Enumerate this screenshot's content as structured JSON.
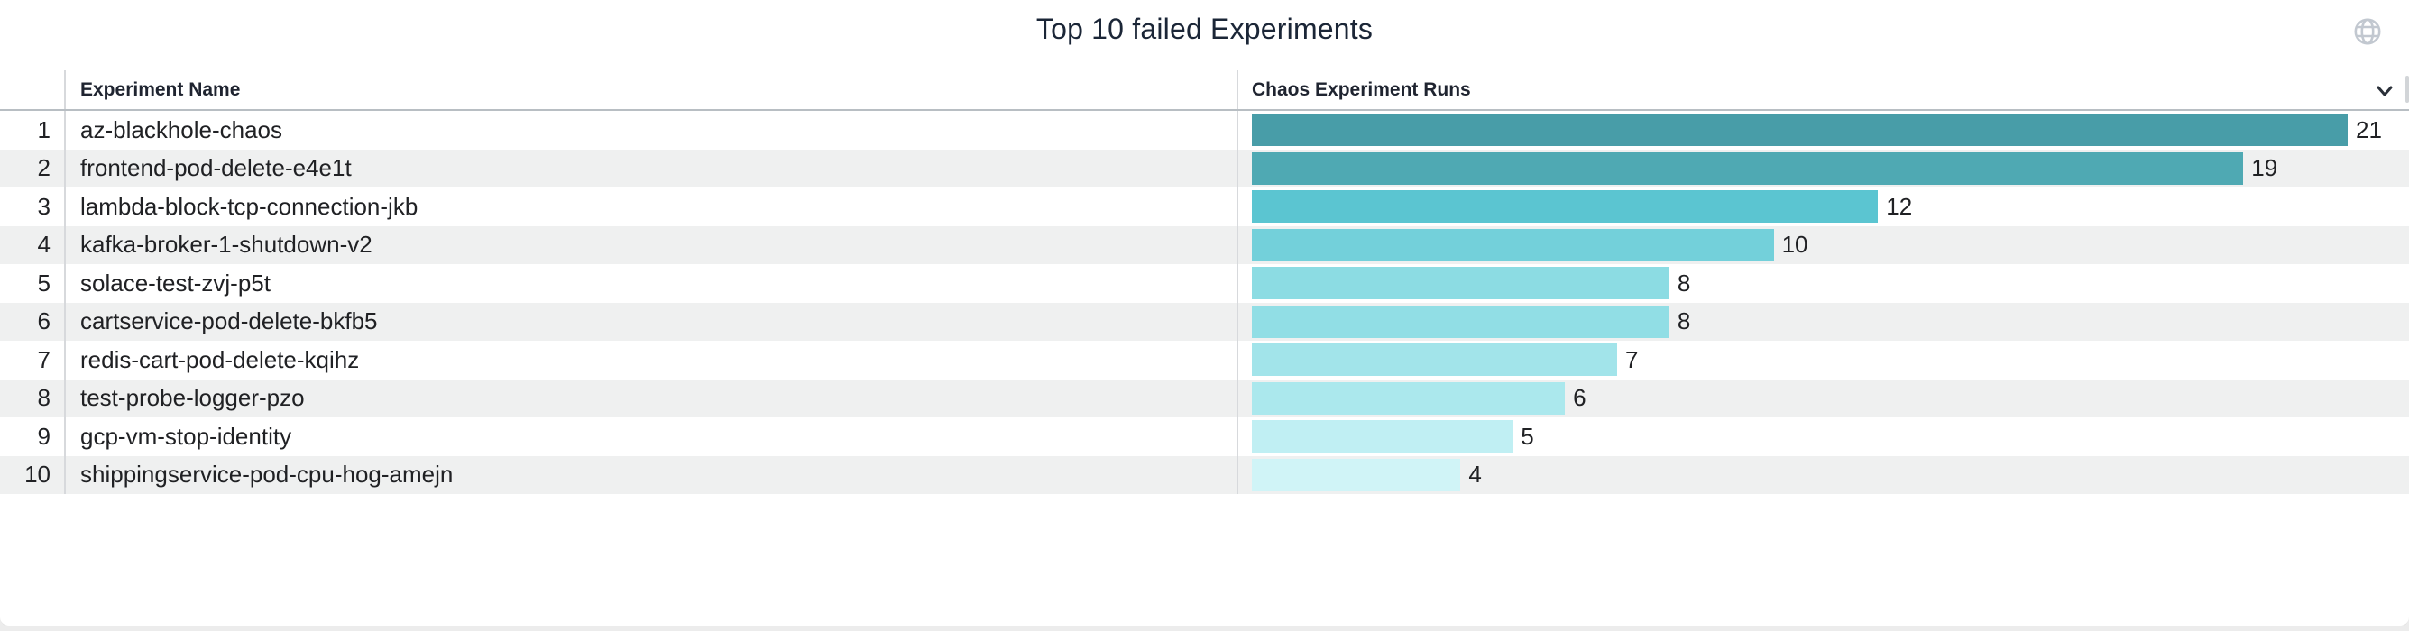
{
  "widget": {
    "title": "Top 10 failed Experiments"
  },
  "table": {
    "rank_header": "",
    "name_header": "Experiment Name",
    "runs_header": "Chaos Experiment Runs",
    "rows": [
      {
        "rank": "1",
        "name": "az-blackhole-chaos",
        "runs": 21,
        "bar_color": "#489DA8"
      },
      {
        "rank": "2",
        "name": "frontend-pod-delete-e4e1t",
        "runs": 19,
        "bar_color": "#4FA9B3"
      },
      {
        "rank": "3",
        "name": "lambda-block-tcp-connection-jkb",
        "runs": 12,
        "bar_color": "#5BC5D1"
      },
      {
        "rank": "4",
        "name": "kafka-broker-1-shutdown-v2",
        "runs": 10,
        "bar_color": "#73D0DA"
      },
      {
        "rank": "5",
        "name": "solace-test-zvj-p5t",
        "runs": 8,
        "bar_color": "#8CDCE3"
      },
      {
        "rank": "6",
        "name": "cartservice-pod-delete-bkfb5",
        "runs": 8,
        "bar_color": "#91DEE5"
      },
      {
        "rank": "7",
        "name": "redis-cart-pod-delete-kqihz",
        "runs": 7,
        "bar_color": "#A2E4EA"
      },
      {
        "rank": "8",
        "name": "test-probe-logger-pzo",
        "runs": 6,
        "bar_color": "#ABE8ED"
      },
      {
        "rank": "9",
        "name": "gcp-vm-stop-identity",
        "runs": 5,
        "bar_color": "#C0EFF3"
      },
      {
        "rank": "10",
        "name": "shippingservice-pod-cpu-hog-amejn",
        "runs": 4,
        "bar_color": "#D0F4F7"
      }
    ]
  },
  "icons": {
    "globe": "globe-icon",
    "chevron": "chevron-down-icon",
    "globe_color": "#c2c8d0",
    "chevron_color": "#2a3039"
  },
  "chart_data": {
    "type": "bar",
    "orientation": "horizontal",
    "title": "Top 10 failed Experiments",
    "categories": [
      "az-blackhole-chaos",
      "frontend-pod-delete-e4e1t",
      "lambda-block-tcp-connection-jkb",
      "kafka-broker-1-shutdown-v2",
      "solace-test-zvj-p5t",
      "cartservice-pod-delete-bkfb5",
      "redis-cart-pod-delete-kqihz",
      "test-probe-logger-pzo",
      "gcp-vm-stop-identity",
      "shippingservice-pod-cpu-hog-amejn"
    ],
    "values": [
      21,
      19,
      12,
      10,
      8,
      8,
      7,
      6,
      5,
      4
    ],
    "value_label": "Chaos Experiment Runs",
    "category_label": "Experiment Name",
    "xlim": [
      0,
      21
    ],
    "grid": false,
    "legend": false,
    "data_labels": true,
    "bar_colors": [
      "#489DA8",
      "#4FA9B3",
      "#5BC5D1",
      "#73D0DA",
      "#8CDCE3",
      "#91DEE5",
      "#A2E4EA",
      "#ABE8ED",
      "#C0EFF3",
      "#D0F4F7"
    ]
  }
}
